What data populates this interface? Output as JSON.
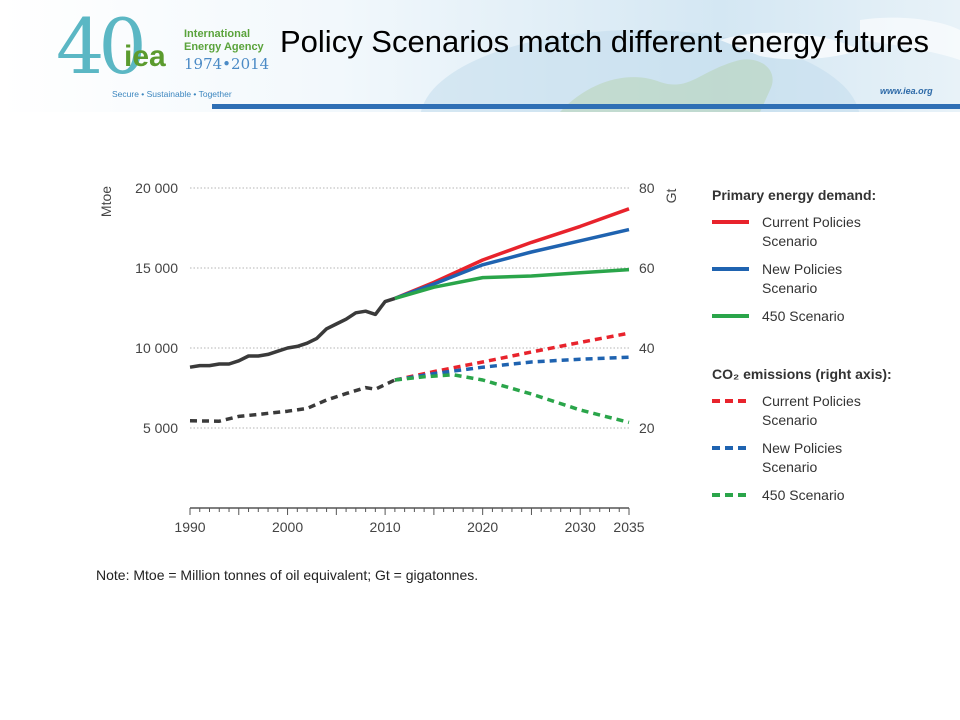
{
  "slide_title": "Policy Scenarios match different energy futures",
  "logo": {
    "number": "40",
    "acronym": "iea",
    "org_name_line1": "International",
    "org_name_line2": "Energy Agency",
    "years": "1974•2014",
    "tagline": "Secure • Sustainable • Together",
    "website": "www.iea.org"
  },
  "note": "Note: Mtoe = Million tonnes of oil equivalent; Gt = gigatonnes.",
  "colors": {
    "current_policies": "#e8232c",
    "new_policies": "#1f63b0",
    "scenario_450": "#2aa54a",
    "history": "#3a3a3a",
    "header_rule": "#2f6fb5"
  },
  "chart_data": {
    "type": "line",
    "left_axis": {
      "label": "Mtoe",
      "ylim": [
        0,
        20000
      ],
      "ticks": [
        5000,
        10000,
        15000,
        20000
      ],
      "tick_labels": [
        "5 000",
        "10 000",
        "15 000",
        "20 000"
      ]
    },
    "right_axis": {
      "label": "Gt",
      "ylim": [
        0,
        80
      ],
      "ticks": [
        20,
        40,
        60,
        80
      ],
      "tick_labels": [
        "20",
        "40",
        "60",
        "80"
      ]
    },
    "x_axis": {
      "xlim": [
        1990,
        2035
      ],
      "ticks": [
        1990,
        2000,
        2010,
        2020,
        2030,
        2035
      ],
      "tick_labels": [
        "1990",
        "2000",
        "2010",
        "2020",
        "2030",
        "2035"
      ]
    },
    "grid": "horizontal-dotted",
    "legend_placement": "right",
    "legend_groups": [
      {
        "heading": "Primary energy demand:",
        "entries": [
          {
            "label_line1": "Current Policies",
            "label_line2": "Scenario",
            "color_key": "current_policies",
            "dashed": false
          },
          {
            "label_line1": "New Policies",
            "label_line2": "Scenario",
            "color_key": "new_policies",
            "dashed": false
          },
          {
            "label_line1": "450 Scenario",
            "label_line2": "",
            "color_key": "scenario_450",
            "dashed": false
          }
        ]
      },
      {
        "heading": "CO₂ emissions (right axis):",
        "entries": [
          {
            "label_line1": "Current Policies",
            "label_line2": "Scenario",
            "color_key": "current_policies",
            "dashed": true
          },
          {
            "label_line1": "New Policies",
            "label_line2": "Scenario",
            "color_key": "new_policies",
            "dashed": true
          },
          {
            "label_line1": "450 Scenario",
            "label_line2": "",
            "color_key": "scenario_450",
            "dashed": true
          }
        ]
      }
    ],
    "series": [
      {
        "key": "demand_history",
        "axis": "left",
        "color_key": "history",
        "dashed": false,
        "x": [
          1990,
          1991,
          1992,
          1993,
          1994,
          1995,
          1996,
          1997,
          1998,
          1999,
          2000,
          2001,
          2002,
          2003,
          2004,
          2005,
          2006,
          2007,
          2008,
          2009,
          2010,
          2011
        ],
        "y": [
          8800,
          8900,
          8900,
          9000,
          9000,
          9200,
          9500,
          9500,
          9600,
          9800,
          10000,
          10100,
          10300,
          10600,
          11200,
          11500,
          11800,
          12200,
          12300,
          12100,
          12900,
          13100
        ]
      },
      {
        "key": "demand_current",
        "axis": "left",
        "color_key": "current_policies",
        "dashed": false,
        "x": [
          2011,
          2015,
          2020,
          2025,
          2030,
          2035
        ],
        "y": [
          13100,
          14100,
          15500,
          16600,
          17600,
          18700
        ]
      },
      {
        "key": "demand_new",
        "axis": "left",
        "color_key": "new_policies",
        "dashed": false,
        "x": [
          2011,
          2015,
          2020,
          2025,
          2030,
          2035
        ],
        "y": [
          13100,
          14000,
          15200,
          16000,
          16700,
          17400
        ]
      },
      {
        "key": "demand_450",
        "axis": "left",
        "color_key": "scenario_450",
        "dashed": false,
        "x": [
          2011,
          2015,
          2020,
          2025,
          2030,
          2035
        ],
        "y": [
          13100,
          13800,
          14400,
          14500,
          14700,
          14900
        ]
      },
      {
        "key": "co2_history",
        "axis": "right",
        "color_key": "history",
        "dashed": true,
        "x": [
          1990,
          1993,
          1995,
          1997,
          2000,
          2002,
          2004,
          2006,
          2008,
          2009,
          2011
        ],
        "y": [
          21.8,
          21.7,
          22.9,
          23.4,
          24.2,
          24.9,
          27.0,
          28.6,
          30.1,
          29.7,
          32.0
        ]
      },
      {
        "key": "co2_current",
        "axis": "right",
        "color_key": "current_policies",
        "dashed": true,
        "x": [
          2011,
          2015,
          2020,
          2025,
          2030,
          2035
        ],
        "y": [
          32.0,
          34.1,
          36.5,
          39.0,
          41.4,
          43.7
        ]
      },
      {
        "key": "co2_new",
        "axis": "right",
        "color_key": "new_policies",
        "dashed": true,
        "x": [
          2011,
          2015,
          2020,
          2025,
          2030,
          2035
        ],
        "y": [
          32.0,
          33.6,
          35.2,
          36.5,
          37.2,
          37.7
        ]
      },
      {
        "key": "co2_450",
        "axis": "right",
        "color_key": "scenario_450",
        "dashed": true,
        "x": [
          2011,
          2014,
          2017,
          2020,
          2025,
          2030,
          2035
        ],
        "y": [
          32.0,
          32.8,
          33.3,
          32.0,
          28.5,
          24.5,
          21.4
        ]
      }
    ]
  }
}
